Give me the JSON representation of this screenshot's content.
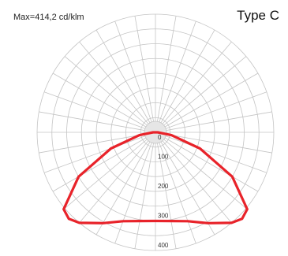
{
  "header": {
    "max_label": "Max=414,2 cd/klm",
    "type_label": "Type C"
  },
  "chart_data": {
    "type": "polar-line",
    "title": "",
    "unit": "cd/klm",
    "max_value": 414.2,
    "radial_range": [
      0,
      400
    ],
    "radial_ticks": [
      {
        "value": 0,
        "label": "0"
      },
      {
        "value": 100,
        "label": "100"
      },
      {
        "value": 200,
        "label": "200"
      },
      {
        "value": 300,
        "label": "300"
      },
      {
        "value": 400,
        "label": "400"
      }
    ],
    "angular_step_deg": 10,
    "grid": true,
    "colors": {
      "curve": "#e8232a",
      "grid": "#c4c4c4",
      "hub": "#e6e6e6"
    },
    "series": [
      {
        "angle_deg": [
          0,
          10,
          20,
          30,
          40,
          45,
          50,
          60,
          70,
          80,
          90
        ],
        "value": [
          300,
          305,
          320,
          355,
          400,
          414.2,
          405,
          300,
          160,
          55,
          8
        ]
      }
    ]
  }
}
